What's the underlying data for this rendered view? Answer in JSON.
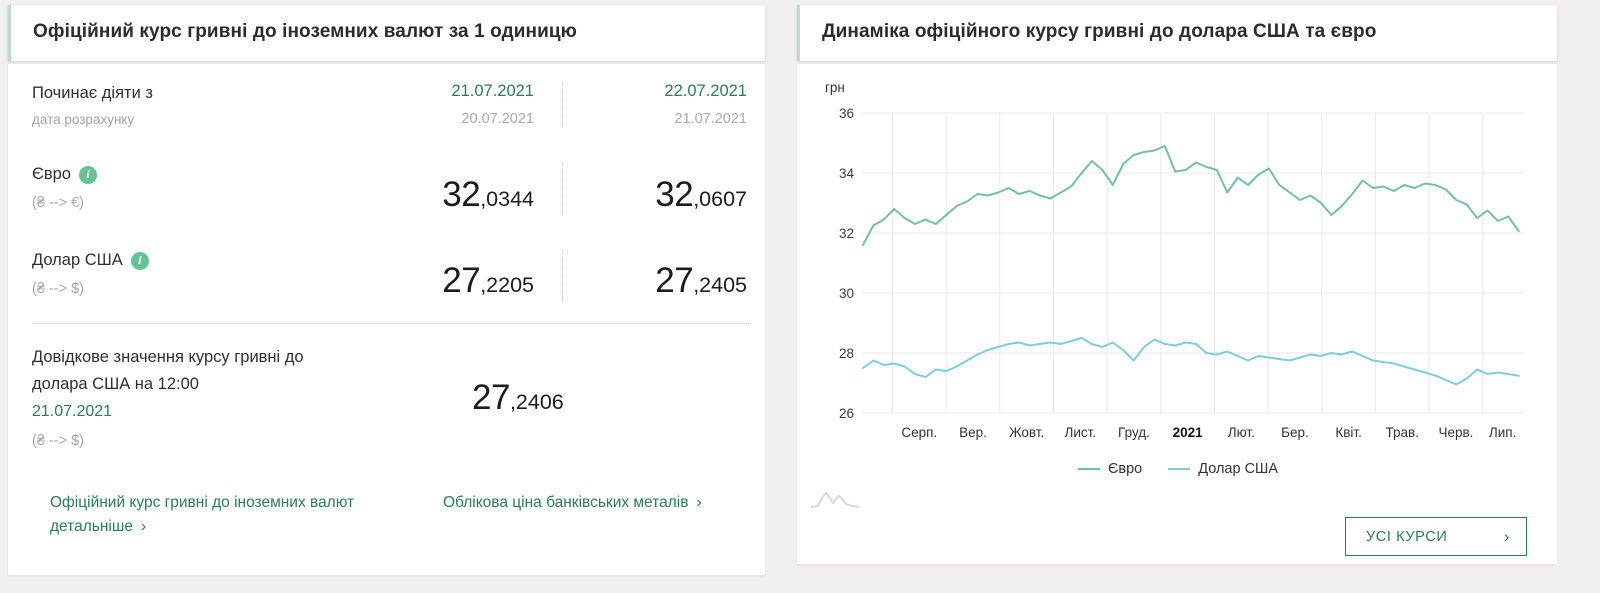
{
  "left_panel": {
    "title": "Офіційний курс гривні до іноземних валют за 1 одиницю",
    "effective_label": "Починає діяти з",
    "calc_date_label": "дата розрахунку",
    "columns": [
      {
        "effective_date": "21.07.2021",
        "calc_date": "20.07.2021"
      },
      {
        "effective_date": "22.07.2021",
        "calc_date": "21.07.2021"
      }
    ],
    "rows": [
      {
        "name": "Євро",
        "pair": "(₴ --> €)",
        "values": [
          "32,0344",
          "32,0607"
        ]
      },
      {
        "name": "Долар США",
        "pair": "(₴ --> $)",
        "values": [
          "27,2205",
          "27,2405"
        ]
      }
    ],
    "reference": {
      "text_line1": "Довідкове значення курсу гривні до",
      "text_line2": "долара США на 12:00",
      "date": "21.07.2021",
      "pair": "(₴ --> $)",
      "value": "27,2406"
    },
    "links": [
      {
        "label": "Офіційний курс гривні до іноземних валют детальніше",
        "chevron": "›"
      },
      {
        "label": "Облікова ціна банківських металів",
        "chevron": "›"
      }
    ]
  },
  "right_panel": {
    "title": "Динаміка офіційного курсу гривні до долара США та євро",
    "button": {
      "label": "УСІ КУРСИ",
      "chevron": "›"
    }
  },
  "chart_data": {
    "type": "line",
    "title": "Динаміка офіційного курсу гривні до долара США та євро",
    "ylabel": "грн",
    "unit_label": "грн",
    "ylim": [
      26,
      36
    ],
    "yticks": [
      36,
      34,
      32,
      30,
      28,
      26
    ],
    "x_month_labels": [
      "Серп.",
      "Вер.",
      "Жовт.",
      "Лист.",
      "Груд.",
      "2021",
      "Лют.",
      "Бер.",
      "Квіт.",
      "Трав.",
      "Черв.",
      "Лип."
    ],
    "emphasized_x_label": "2021",
    "x_period": "липень 2020 — липень 2021",
    "grid": true,
    "legend_position": "bottom",
    "series": [
      {
        "name": "Євро",
        "color": "#74bfa0",
        "values": [
          31.6,
          32.25,
          32.45,
          32.8,
          32.5,
          32.3,
          32.45,
          32.3,
          32.6,
          32.9,
          33.05,
          33.3,
          33.25,
          33.35,
          33.5,
          33.3,
          33.4,
          33.25,
          33.15,
          33.35,
          33.55,
          34.0,
          34.4,
          34.1,
          33.6,
          34.3,
          34.6,
          34.7,
          34.75,
          34.9,
          34.05,
          34.1,
          34.35,
          34.2,
          34.1,
          33.35,
          33.85,
          33.6,
          33.95,
          34.15,
          33.6,
          33.35,
          33.1,
          33.25,
          33.0,
          32.6,
          32.9,
          33.3,
          33.75,
          33.5,
          33.55,
          33.4,
          33.6,
          33.5,
          33.65,
          33.6,
          33.45,
          33.1,
          32.95,
          32.5,
          32.75,
          32.4,
          32.55,
          32.06
        ]
      },
      {
        "name": "Долар США",
        "color": "#7fcdd4",
        "values": [
          27.5,
          27.75,
          27.6,
          27.65,
          27.55,
          27.3,
          27.2,
          27.45,
          27.4,
          27.55,
          27.75,
          27.95,
          28.1,
          28.2,
          28.3,
          28.35,
          28.25,
          28.3,
          28.35,
          28.3,
          28.4,
          28.5,
          28.3,
          28.2,
          28.35,
          28.1,
          27.75,
          28.2,
          28.45,
          28.3,
          28.25,
          28.35,
          28.3,
          28.0,
          27.95,
          28.05,
          27.9,
          27.75,
          27.9,
          27.85,
          27.8,
          27.75,
          27.85,
          27.95,
          27.9,
          28.0,
          27.95,
          28.05,
          27.9,
          27.75,
          27.7,
          27.65,
          27.55,
          27.45,
          27.35,
          27.25,
          27.1,
          26.95,
          27.15,
          27.45,
          27.3,
          27.35,
          27.3,
          27.24
        ]
      }
    ]
  },
  "colors": {
    "accent_green": "#2a7a5e",
    "header_accent": "#b9dccd",
    "info_icon": "#66c296",
    "euro_line": "#74bfa0",
    "dollar_line": "#7fcdd4",
    "grid_line": "#e8e8e8",
    "muted_text": "#a9a9a9"
  }
}
